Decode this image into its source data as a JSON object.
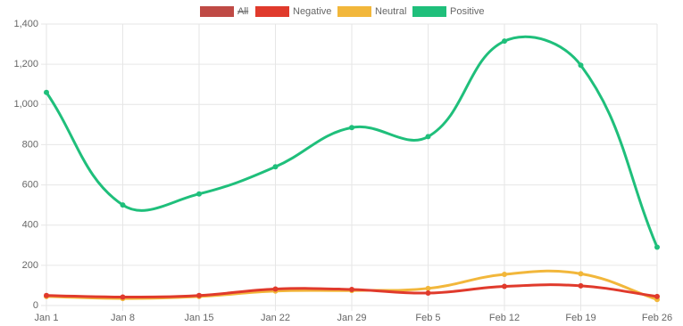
{
  "chart_data": {
    "type": "line",
    "categories": [
      "Jan 1",
      "Jan 8",
      "Jan 15",
      "Jan 22",
      "Jan 29",
      "Feb 5",
      "Feb 12",
      "Feb 19",
      "Feb 26"
    ],
    "series": [
      {
        "name": "All",
        "color": "#bf4a45",
        "hidden": true
      },
      {
        "name": "Negative",
        "color": "#e03a2c",
        "values": [
          50,
          42,
          50,
          82,
          80,
          62,
          95,
          98,
          45
        ]
      },
      {
        "name": "Neutral",
        "color": "#f2b73b",
        "values": [
          45,
          35,
          45,
          72,
          75,
          85,
          155,
          158,
          30
        ]
      },
      {
        "name": "Positive",
        "color": "#1fbf7b",
        "values": [
          1060,
          500,
          555,
          690,
          885,
          840,
          1315,
          1195,
          290
        ]
      }
    ],
    "ylim": [
      0,
      1400
    ],
    "yticks": [
      0,
      200,
      400,
      600,
      800,
      {
        "value": 1000,
        "label": "1,000"
      },
      {
        "value": 1200,
        "label": "1,200"
      },
      {
        "value": 1400,
        "label": "1,400"
      }
    ],
    "grid": true,
    "legend": "top"
  }
}
